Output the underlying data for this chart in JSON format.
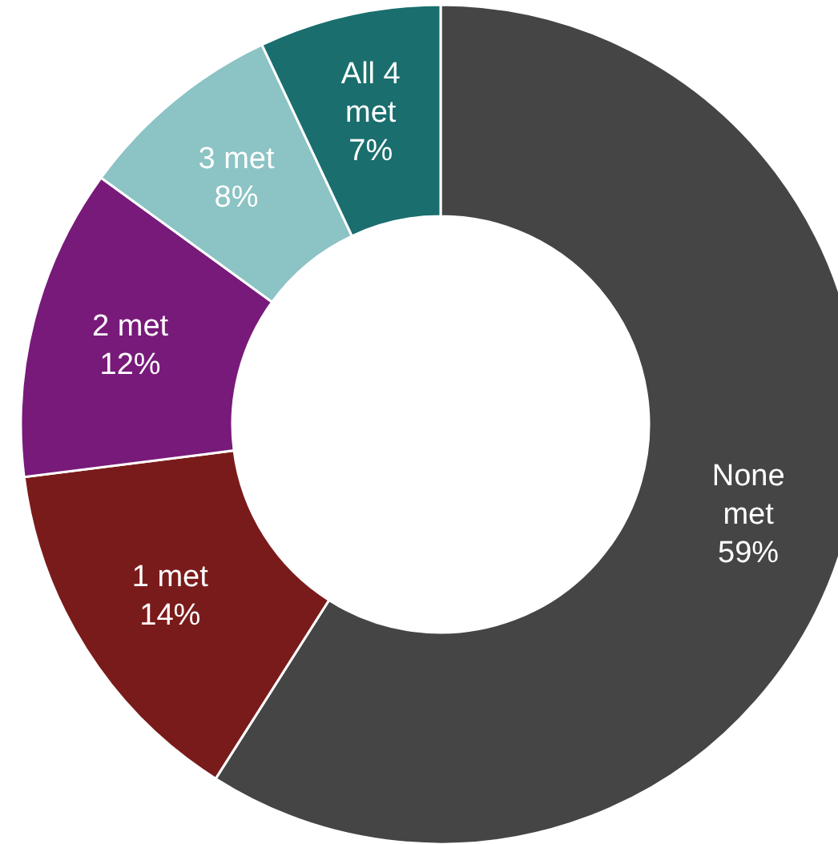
{
  "chart_data": {
    "type": "donut",
    "categories": [
      "None met",
      "1 met",
      "2 met",
      "3 met",
      "All 4 met"
    ],
    "values": [
      59,
      14,
      12,
      8,
      7
    ],
    "colors": [
      "#454545",
      "#7a1b1b",
      "#781a7a",
      "#8cc3c4",
      "#1a6e6e"
    ],
    "value_labels": [
      "59%",
      "14%",
      "12%",
      "8%",
      "7%"
    ]
  }
}
